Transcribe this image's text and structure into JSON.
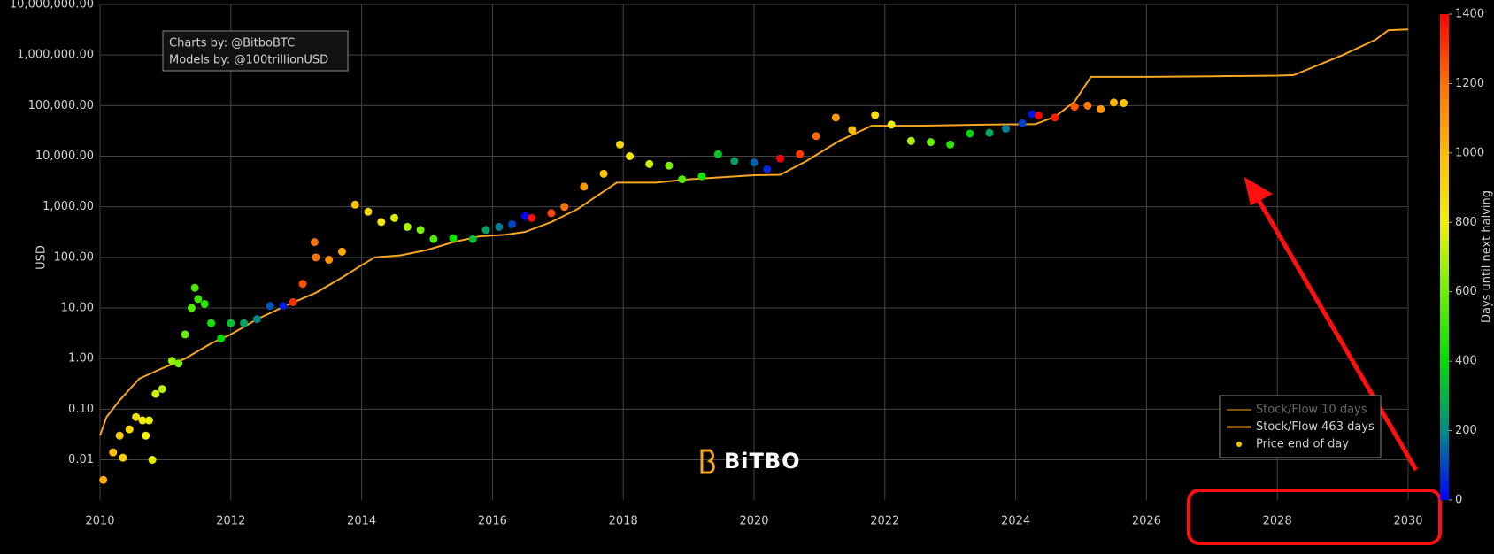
{
  "chart_data": {
    "type": "scatter",
    "annotation": [
      "Charts by: @BitboBTC",
      "Models by: @100trillionUSD"
    ],
    "logo": "BiTBO",
    "ylabel": "USD",
    "log_y": true,
    "grid": true,
    "legend": "bottom right",
    "xlim": [
      2010,
      2030
    ],
    "xticks": [
      2010,
      2012,
      2014,
      2016,
      2018,
      2020,
      2022,
      2024,
      2026,
      2028,
      2030
    ],
    "ylim": [
      0.0016,
      10000000
    ],
    "yticks": [
      0.01,
      {
        "value": 0.1,
        "label": "0.10"
      },
      {
        "value": 1,
        "label": "1.00"
      },
      {
        "value": 10,
        "label": "10.00"
      },
      {
        "value": 100,
        "label": "100.00"
      },
      {
        "value": 1000,
        "label": "1,000.00"
      },
      {
        "value": 10000,
        "label": "10,000.00"
      },
      {
        "value": 100000,
        "label": "100,000.00"
      },
      {
        "value": 1000000,
        "label": "1,000,000.00"
      },
      {
        "value": 10000000,
        "label": "10,000,000.00"
      }
    ],
    "colorbar": {
      "title": "Days until next halving",
      "lim": [
        0,
        1400
      ],
      "ticks": [
        0,
        200,
        400,
        600,
        800,
        1000,
        1200,
        1400
      ],
      "colorscale": [
        [
          0,
          "#0000ff"
        ],
        [
          0.14,
          "#008a8a"
        ],
        [
          0.29,
          "#00e000"
        ],
        [
          0.43,
          "#70f000"
        ],
        [
          0.57,
          "#f0f000"
        ],
        [
          0.71,
          "#ffc000"
        ],
        [
          0.86,
          "#ff7000"
        ],
        [
          1,
          "#ff0000"
        ]
      ]
    },
    "series": [
      {
        "name": "Stock/Flow 10 days",
        "type": "line",
        "color": "#f5a623",
        "visible": false
      },
      {
        "name": "Stock/Flow 463 days",
        "type": "line",
        "color": "#f5a623",
        "x": [
          2010.0,
          2010.1,
          2010.3,
          2010.6,
          2010.9,
          2011.3,
          2011.7,
          2012.0,
          2012.4,
          2012.9,
          2013.3,
          2013.7,
          2014.0,
          2014.2,
          2014.6,
          2015.0,
          2015.4,
          2015.8,
          2016.2,
          2016.5,
          2016.9,
          2017.3,
          2017.9,
          2018.5,
          2019.0,
          2019.6,
          2020.0,
          2020.4,
          2020.8,
          2021.3,
          2021.8,
          2022.5,
          2023.0,
          2023.5,
          2024.3,
          2024.6,
          2024.9,
          2025.15,
          2026.0,
          2027.0,
          2028.0,
          2028.25,
          2029.0,
          2029.5,
          2029.7,
          2030.0
        ],
        "values": [
          0.03,
          0.07,
          0.15,
          0.4,
          0.6,
          1,
          2,
          3,
          6,
          12,
          20,
          40,
          70,
          100,
          110,
          140,
          200,
          260,
          280,
          320,
          500,
          900,
          3000,
          3000,
          3500,
          3900,
          4200,
          4300,
          8000,
          20000,
          40000,
          40000,
          41000,
          42000,
          43000,
          60000,
          120000,
          370000,
          370000,
          380000,
          390000,
          400000,
          1000000,
          2000000,
          3100000,
          3200000
        ]
      },
      {
        "name": "Price end of day",
        "type": "scatter",
        "color": "#f5c400",
        "x": [
          2010.05,
          2010.2,
          2010.3,
          2010.35,
          2010.45,
          2010.55,
          2010.65,
          2010.7,
          2010.75,
          2010.8,
          2010.85,
          2010.95,
          2011.1,
          2011.2,
          2011.3,
          2011.4,
          2011.45,
          2011.5,
          2011.6,
          2011.7,
          2011.85,
          2012.0,
          2012.2,
          2012.4,
          2012.6,
          2012.8,
          2012.95,
          2013.1,
          2013.28,
          2013.3,
          2013.5,
          2013.7,
          2013.9,
          2014.1,
          2014.3,
          2014.5,
          2014.7,
          2014.9,
          2015.1,
          2015.4,
          2015.7,
          2015.9,
          2016.1,
          2016.3,
          2016.5,
          2016.6,
          2016.9,
          2017.1,
          2017.4,
          2017.7,
          2017.95,
          2018.1,
          2018.4,
          2018.7,
          2018.9,
          2019.2,
          2019.45,
          2019.7,
          2020.0,
          2020.2,
          2020.4,
          2020.7,
          2020.95,
          2021.25,
          2021.5,
          2021.85,
          2022.1,
          2022.4,
          2022.7,
          2023.0,
          2023.3,
          2023.6,
          2023.85,
          2024.1,
          2024.25,
          2024.35,
          2024.6,
          2024.9,
          2025.1,
          2025.3,
          2025.5,
          2025.65
        ],
        "values": [
          0.004,
          0.014,
          0.03,
          0.011,
          0.04,
          0.07,
          0.06,
          0.03,
          0.06,
          0.01,
          0.2,
          0.25,
          0.9,
          0.8,
          3,
          10,
          25,
          15,
          12,
          5,
          2.5,
          5,
          5,
          6,
          11,
          11,
          13,
          30,
          200,
          100,
          90,
          130,
          1100,
          800,
          500,
          600,
          400,
          350,
          230,
          240,
          230,
          350,
          400,
          450,
          650,
          600,
          750,
          1000,
          2500,
          4500,
          17000,
          10000,
          7000,
          6500,
          3500,
          4000,
          11000,
          8000,
          7500,
          5500,
          9000,
          11000,
          25000,
          58000,
          33000,
          65000,
          42000,
          20000,
          19000,
          17000,
          28000,
          29000,
          35000,
          45000,
          68000,
          64000,
          58000,
          95000,
          100000,
          85000,
          115000,
          112000
        ],
        "color_values": [
          1040,
          990,
          950,
          930,
          890,
          860,
          820,
          800,
          790,
          770,
          750,
          720,
          660,
          620,
          590,
          550,
          540,
          510,
          480,
          440,
          390,
          330,
          260,
          190,
          120,
          40,
          1320,
          1260,
          1200,
          1190,
          1120,
          1050,
          980,
          900,
          830,
          760,
          690,
          610,
          540,
          440,
          330,
          250,
          180,
          100,
          10,
          1380,
          1280,
          1200,
          1100,
          990,
          900,
          840,
          740,
          620,
          550,
          440,
          350,
          250,
          140,
          60,
          1420,
          1300,
          1210,
          1100,
          1000,
          880,
          800,
          700,
          580,
          480,
          380,
          270,
          180,
          90,
          30,
          1440,
          1350,
          1250,
          1180,
          1100,
          1020,
          970
        ]
      }
    ]
  }
}
